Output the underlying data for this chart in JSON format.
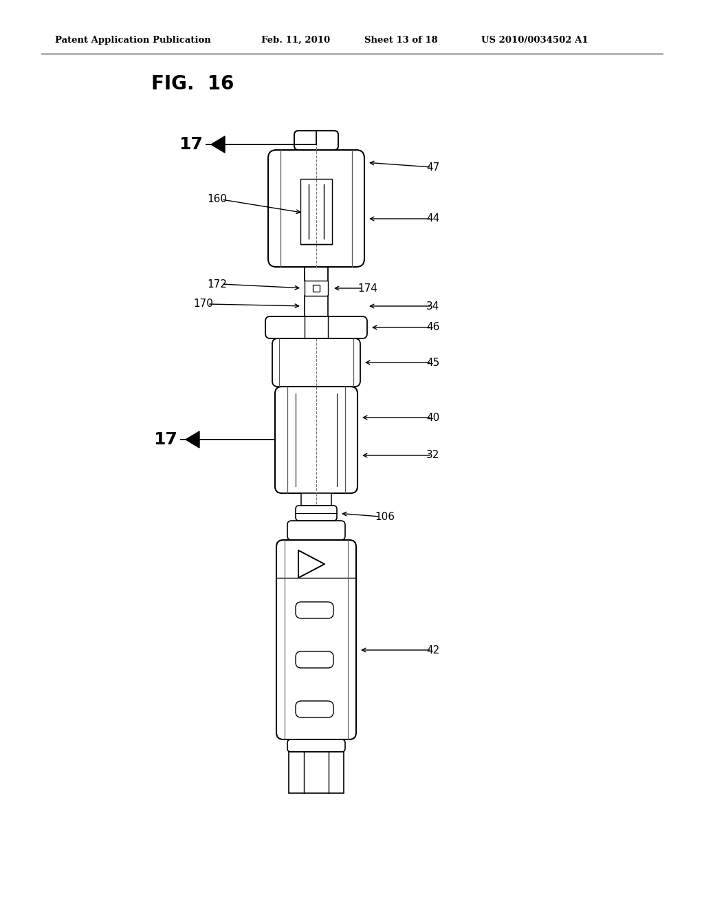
{
  "bg_color": "#ffffff",
  "line_color": "#000000",
  "header_text": "Patent Application Publication",
  "header_date": "Feb. 11, 2010",
  "header_sheet": "Sheet 13 of 18",
  "header_patent": "US 2010/0034502 A1",
  "fig_label": "FIG.  16"
}
